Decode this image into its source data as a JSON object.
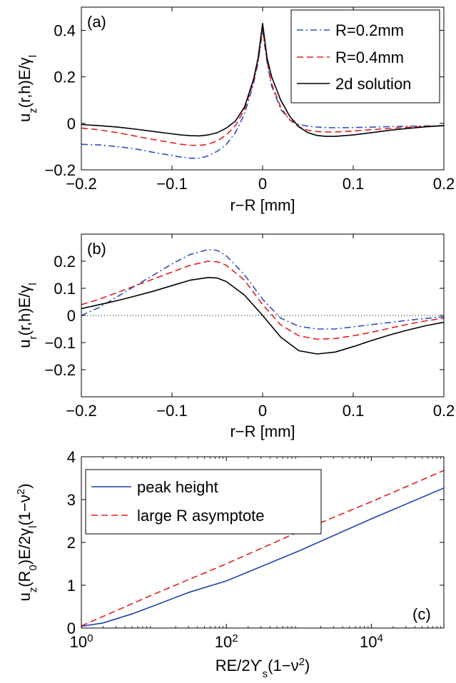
{
  "chart_data": [
    {
      "type": "line",
      "panel_label": "(a)",
      "xlabel": "r−R [mm]",
      "ylabel": "u_z(r,h)E/γ_l",
      "xlim": [
        -0.2,
        0.2
      ],
      "ylim": [
        -0.2,
        0.5
      ],
      "xticks": [
        -0.2,
        -0.1,
        0,
        0.1,
        0.2
      ],
      "xtick_labels": [
        "−0.2",
        "−0.1",
        "0",
        "0.1",
        "0.2"
      ],
      "yticks": [
        -0.2,
        0,
        0.2,
        0.4
      ],
      "ytick_labels": [
        "−0.2",
        "0",
        "0.2",
        "0.4"
      ],
      "grid": false,
      "legend_position": "top-right",
      "series": [
        {
          "name": "R=0.2mm",
          "color": "#3050c0",
          "dash": "dashdot",
          "x": [
            -0.2,
            -0.18,
            -0.16,
            -0.14,
            -0.12,
            -0.1,
            -0.09,
            -0.08,
            -0.07,
            -0.06,
            -0.05,
            -0.04,
            -0.03,
            -0.02,
            -0.01,
            -0.005,
            0,
            0.005,
            0.01,
            0.02,
            0.03,
            0.04,
            0.05,
            0.06,
            0.07,
            0.08,
            0.1,
            0.12,
            0.14,
            0.16,
            0.18,
            0.2
          ],
          "y": [
            -0.09,
            -0.093,
            -0.1,
            -0.11,
            -0.125,
            -0.138,
            -0.145,
            -0.15,
            -0.15,
            -0.14,
            -0.12,
            -0.09,
            -0.04,
            0.04,
            0.17,
            0.26,
            0.4,
            0.26,
            0.16,
            0.06,
            0.015,
            -0.005,
            -0.012,
            -0.016,
            -0.018,
            -0.019,
            -0.018,
            -0.016,
            -0.014,
            -0.012,
            -0.011,
            -0.01
          ]
        },
        {
          "name": "R=0.4mm",
          "color": "#e02020",
          "dash": "dashed",
          "x": [
            -0.2,
            -0.18,
            -0.16,
            -0.14,
            -0.12,
            -0.1,
            -0.09,
            -0.08,
            -0.07,
            -0.06,
            -0.05,
            -0.04,
            -0.03,
            -0.02,
            -0.01,
            -0.005,
            0,
            0.005,
            0.01,
            0.02,
            0.03,
            0.04,
            0.05,
            0.06,
            0.07,
            0.08,
            0.1,
            0.12,
            0.14,
            0.16,
            0.18,
            0.2
          ],
          "y": [
            -0.02,
            -0.028,
            -0.04,
            -0.055,
            -0.07,
            -0.083,
            -0.09,
            -0.094,
            -0.095,
            -0.09,
            -0.075,
            -0.05,
            -0.01,
            0.06,
            0.18,
            0.27,
            0.41,
            0.27,
            0.17,
            0.07,
            0.015,
            -0.015,
            -0.03,
            -0.035,
            -0.037,
            -0.037,
            -0.033,
            -0.027,
            -0.022,
            -0.017,
            -0.013,
            -0.01
          ]
        },
        {
          "name": "2d solution",
          "color": "#000000",
          "dash": "solid",
          "x": [
            -0.2,
            -0.18,
            -0.16,
            -0.14,
            -0.12,
            -0.1,
            -0.09,
            -0.08,
            -0.07,
            -0.06,
            -0.05,
            -0.04,
            -0.03,
            -0.02,
            -0.01,
            -0.005,
            0,
            0.005,
            0.01,
            0.02,
            0.03,
            0.04,
            0.05,
            0.06,
            0.07,
            0.08,
            0.1,
            0.12,
            0.14,
            0.16,
            0.18,
            0.2
          ],
          "y": [
            -0.005,
            -0.01,
            -0.016,
            -0.025,
            -0.035,
            -0.045,
            -0.05,
            -0.053,
            -0.054,
            -0.05,
            -0.04,
            -0.02,
            0.01,
            0.07,
            0.19,
            0.28,
            0.43,
            0.28,
            0.2,
            0.1,
            0.03,
            -0.015,
            -0.04,
            -0.052,
            -0.056,
            -0.056,
            -0.05,
            -0.04,
            -0.03,
            -0.022,
            -0.015,
            -0.01
          ]
        }
      ]
    },
    {
      "type": "line",
      "panel_label": "(b)",
      "xlabel": "r−R [mm]",
      "ylabel": "u_r(r,h)E/γ_l",
      "xlim": [
        -0.2,
        0.2
      ],
      "ylim": [
        -0.3,
        0.3
      ],
      "xticks": [
        -0.2,
        -0.1,
        0,
        0.1,
        0.2
      ],
      "xtick_labels": [
        "−0.2",
        "−0.1",
        "0",
        "0.1",
        "0.2"
      ],
      "yticks": [
        -0.2,
        -0.1,
        0,
        0.1,
        0.2
      ],
      "ytick_labels": [
        "−0.2",
        "−0.1",
        "0",
        "0.1",
        "0.2"
      ],
      "grid": false,
      "zero_line": true,
      "series": [
        {
          "name": "R=0.2mm",
          "color": "#3050c0",
          "dash": "dashdot",
          "x": [
            -0.2,
            -0.18,
            -0.16,
            -0.14,
            -0.12,
            -0.1,
            -0.08,
            -0.06,
            -0.05,
            -0.04,
            -0.02,
            0,
            0.02,
            0.04,
            0.06,
            0.08,
            0.1,
            0.12,
            0.14,
            0.16,
            0.18,
            0.2
          ],
          "y": [
            0.0,
            0.03,
            0.07,
            0.11,
            0.15,
            0.19,
            0.225,
            0.243,
            0.24,
            0.22,
            0.15,
            0.06,
            -0.01,
            -0.04,
            -0.05,
            -0.05,
            -0.042,
            -0.034,
            -0.026,
            -0.018,
            -0.011,
            -0.005
          ]
        },
        {
          "name": "R=0.4mm",
          "color": "#e02020",
          "dash": "dashed",
          "x": [
            -0.2,
            -0.18,
            -0.16,
            -0.14,
            -0.12,
            -0.1,
            -0.08,
            -0.06,
            -0.05,
            -0.04,
            -0.02,
            0,
            0.02,
            0.04,
            0.06,
            0.08,
            0.1,
            0.12,
            0.14,
            0.16,
            0.18,
            0.2
          ],
          "y": [
            0.04,
            0.06,
            0.085,
            0.11,
            0.135,
            0.16,
            0.185,
            0.2,
            0.198,
            0.185,
            0.13,
            0.04,
            -0.035,
            -0.075,
            -0.088,
            -0.085,
            -0.075,
            -0.062,
            -0.047,
            -0.033,
            -0.02,
            -0.01
          ]
        },
        {
          "name": "2d solution",
          "color": "#000000",
          "dash": "solid",
          "x": [
            -0.2,
            -0.18,
            -0.16,
            -0.14,
            -0.12,
            -0.1,
            -0.08,
            -0.06,
            -0.05,
            -0.04,
            -0.02,
            0,
            0.02,
            0.04,
            0.06,
            0.08,
            0.1,
            0.12,
            0.14,
            0.16,
            0.18,
            0.2
          ],
          "y": [
            0.025,
            0.04,
            0.055,
            0.072,
            0.09,
            0.11,
            0.13,
            0.14,
            0.138,
            0.125,
            0.075,
            0.0,
            -0.08,
            -0.13,
            -0.142,
            -0.135,
            -0.115,
            -0.093,
            -0.072,
            -0.054,
            -0.038,
            -0.025
          ]
        }
      ]
    },
    {
      "type": "line",
      "panel_label": "(c)",
      "xlabel": "RE/2ϒ_s(1−ν^2)",
      "ylabel": "u_z(R_0)E/2γ_l(1−ν^2)",
      "xscale": "log",
      "xlim": [
        1,
        100000
      ],
      "ylim": [
        0,
        4
      ],
      "xticks": [
        1,
        100,
        10000
      ],
      "xtick_labels": [
        "10^0",
        "10^2",
        "10^4"
      ],
      "yticks": [
        0,
        1,
        2,
        3,
        4
      ],
      "ytick_labels": [
        "0",
        "1",
        "2",
        "3",
        "4"
      ],
      "grid": false,
      "legend_position": "top-left",
      "series": [
        {
          "name": "peak height",
          "color": "#2040b0",
          "dash": "solid",
          "x": [
            1,
            2,
            5,
            10,
            30,
            100,
            1000,
            10000,
            100000
          ],
          "y": [
            0.04,
            0.12,
            0.33,
            0.52,
            0.83,
            1.1,
            1.8,
            2.55,
            3.27
          ]
        },
        {
          "name": "large R asymptote",
          "color": "#e02020",
          "dash": "dashed",
          "x": [
            1,
            10,
            100,
            1000,
            10000,
            100000
          ],
          "y": [
            0.05,
            0.79,
            1.5,
            2.25,
            2.95,
            3.68
          ]
        }
      ]
    }
  ]
}
